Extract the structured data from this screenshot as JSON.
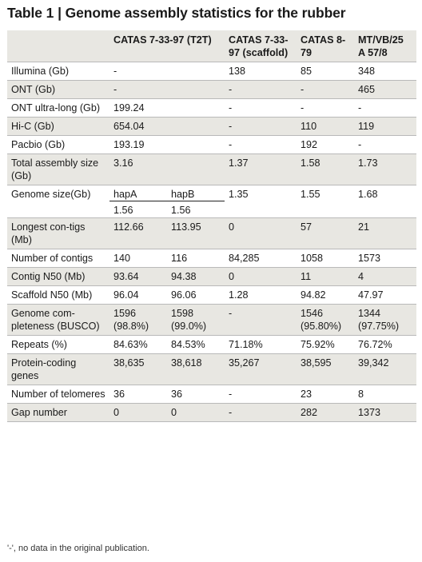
{
  "title": "Table 1 | Genome assembly statistics for the rubber",
  "headers": {
    "c0": "",
    "c1": "CATAS 7-33-97 (T2T)",
    "c3": "CATAS 7-33-97 (scaffold)",
    "c4": "CATAS 8-79",
    "c5": "MT/VB/25 A 57/8"
  },
  "rows": [
    {
      "label": "Illumina (Gb)",
      "c1": "-",
      "c2": "",
      "c3": "138",
      "c4": "85",
      "c5": "348"
    },
    {
      "label": "ONT (Gb)",
      "c1": "-",
      "c2": "",
      "c3": "-",
      "c4": "-",
      "c5": "465"
    },
    {
      "label": "ONT ultra-long (Gb)",
      "c1": "199.24",
      "c2": "",
      "c3": "-",
      "c4": "-",
      "c5": "-"
    },
    {
      "label": "Hi-C (Gb)",
      "c1": "654.04",
      "c2": "",
      "c3": "-",
      "c4": "110",
      "c5": "119"
    },
    {
      "label": "Pacbio (Gb)",
      "c1": "193.19",
      "c2": "",
      "c3": "-",
      "c4": "192",
      "c5": "-"
    },
    {
      "label": "Total assembly size (Gb)",
      "c1": "3.16",
      "c2": "",
      "c3": "1.37",
      "c4": "1.58",
      "c5": "1.73"
    },
    {
      "label": "Genome size(Gb)",
      "c1a": "hapA",
      "c2a": "hapB",
      "c1b": "1.56",
      "c2b": "1.56",
      "c3": "1.35",
      "c4": "1.55",
      "c5": "1.68"
    },
    {
      "label": "Longest con-tigs (Mb)",
      "c1": "112.66",
      "c2": "113.95",
      "c3": "0",
      "c4": "57",
      "c5": "21"
    },
    {
      "label": "Number of contigs",
      "c1": "140",
      "c2": "116",
      "c3": "84,285",
      "c4": "1058",
      "c5": "1573"
    },
    {
      "label": "Contig N50 (Mb)",
      "c1": "93.64",
      "c2": "94.38",
      "c3": "0",
      "c4": "11",
      "c5": "4"
    },
    {
      "label": "Scaffold N50 (Mb)",
      "c1": "96.04",
      "c2": "96.06",
      "c3": "1.28",
      "c4": "94.82",
      "c5": "47.97"
    },
    {
      "label": "Genome com-pleteness (BUSCO)",
      "c1": "1596 (98.8%)",
      "c2": "1598 (99.0%)",
      "c3": "-",
      "c4": "1546 (95.80%)",
      "c5": "1344 (97.75%)"
    },
    {
      "label": "Repeats (%)",
      "c1": "84.63%",
      "c2": "84.53%",
      "c3": "71.18%",
      "c4": "75.92%",
      "c5": "76.72%"
    },
    {
      "label": "Protein-coding genes",
      "c1": "38,635",
      "c2": "38,618",
      "c3": "35,267",
      "c4": "38,595",
      "c5": "39,342"
    },
    {
      "label": "Number of telomeres",
      "c1": "36",
      "c2": "36",
      "c3": "-",
      "c4": "23",
      "c5": "8"
    },
    {
      "label": "Gap number",
      "c1": "0",
      "c2": "0",
      "c3": "-",
      "c4": "282",
      "c5": "1373"
    }
  ],
  "footnote": "'-', no data in the original publication."
}
